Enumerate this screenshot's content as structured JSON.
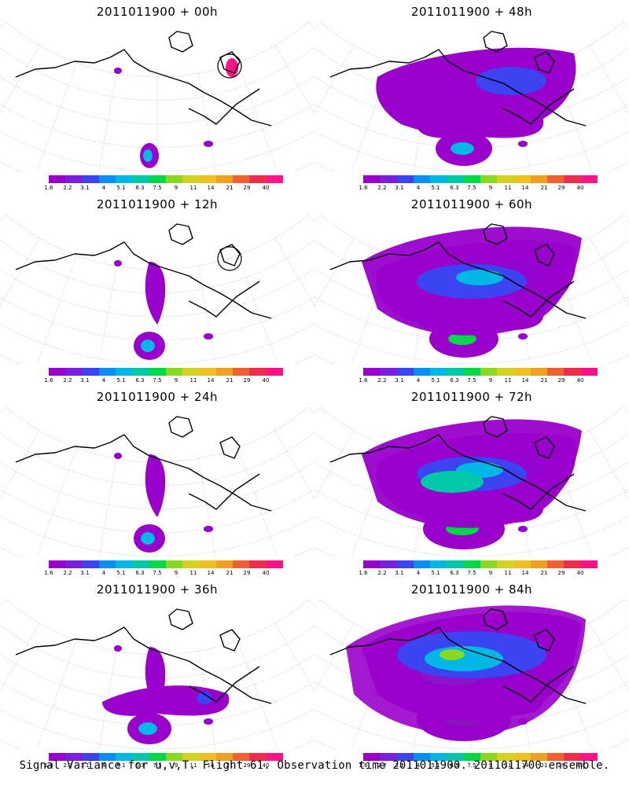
{
  "panels": [
    {
      "title": "2011011900 + 00h",
      "level": 0
    },
    {
      "title": "2011011900 + 48h",
      "level": 3
    },
    {
      "title": "2011011900 + 12h",
      "level": 1
    },
    {
      "title": "2011011900 + 60h",
      "level": 4
    },
    {
      "title": "2011011900 + 24h",
      "level": 1
    },
    {
      "title": "2011011900 + 72h",
      "level": 5
    },
    {
      "title": "2011011900 + 36h",
      "level": 2
    },
    {
      "title": "2011011900 + 84h",
      "level": 6
    }
  ],
  "colorbar": {
    "labels": [
      "1.6",
      "2.2",
      "3.1",
      "4",
      "5.1",
      "6.3",
      "7.5",
      "9",
      "11",
      "14",
      "21",
      "29",
      "40"
    ],
    "colors": [
      "#9900cc",
      "#7a1fe0",
      "#3b44f0",
      "#0a8ef2",
      "#00b8e6",
      "#00c8a8",
      "#00d848",
      "#88d820",
      "#d4d420",
      "#f0c020",
      "#f0a020",
      "#f06030",
      "#f02c4c",
      "#ff1188"
    ]
  },
  "caption": "Signal Variance for u,v,T. Flight 61. Observation time 2011011900. 2011011700 ensemble."
}
